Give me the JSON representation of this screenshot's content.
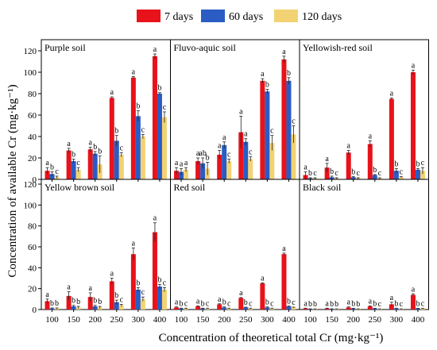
{
  "chart_data": {
    "type": "bar",
    "xlabel": "Concentration of theoretical total Cr (mg·kg⁻¹)",
    "ylabel": "Concentration of available Cr (mg·kg⁻¹)",
    "ylim": [
      0,
      120
    ],
    "yticks": [
      0,
      20,
      40,
      60,
      80,
      100,
      120
    ],
    "categories": [
      "100",
      "150",
      "200",
      "250",
      "300",
      "400"
    ],
    "legend": {
      "placement": "top",
      "entries": [
        {
          "name": "7 days",
          "color": "#e8121b"
        },
        {
          "name": "60 days",
          "color": "#2a5cc4"
        },
        {
          "name": "120 days",
          "color": "#f2d272"
        }
      ]
    },
    "panels": [
      {
        "title": "Purple soil",
        "series": [
          {
            "name": "7 days",
            "values": [
              8,
              27,
              28,
              76,
              95,
              115
            ],
            "errors": [
              3,
              2,
              2,
              1,
              1,
              2
            ],
            "letters": [
              "a",
              "a",
              "a",
              "a",
              "a",
              "a"
            ]
          },
          {
            "name": "60 days",
            "values": [
              5,
              17,
              24,
              36,
              59,
              80
            ],
            "errors": [
              2,
              2,
              2,
              5,
              5,
              1
            ],
            "letters": [
              "b",
              "b",
              "b",
              "b",
              "b",
              "b"
            ]
          },
          {
            "name": "120 days",
            "values": [
              2,
              9,
              14,
              23,
              40,
              58
            ],
            "errors": [
              1,
              2,
              8,
              2,
              2,
              5
            ],
            "letters": [
              "c",
              "c",
              "b",
              "c",
              "c",
              "c"
            ]
          }
        ]
      },
      {
        "title": "Fluvo-aquic soil",
        "series": [
          {
            "name": "7 days",
            "values": [
              8,
              17,
              23,
              44,
              92,
              112
            ],
            "errors": [
              3,
              3,
              4,
              15,
              2,
              3
            ],
            "letters": [
              "a",
              "a",
              "a",
              "a",
              "a",
              "a"
            ]
          },
          {
            "name": "60 days",
            "values": [
              7,
              15,
              32,
              35,
              82,
              92
            ],
            "errors": [
              3,
              5,
              3,
              3,
              2,
              3
            ],
            "letters": [
              "a",
              "ab",
              "a",
              "a",
              "b",
              "b"
            ]
          },
          {
            "name": "120 days",
            "values": [
              9,
              10,
              17,
              19,
              34,
              42
            ],
            "errors": [
              2,
              6,
              2,
              2,
              7,
              8
            ],
            "letters": [
              "a",
              "b",
              "c",
              "c",
              "c",
              "c"
            ]
          }
        ]
      },
      {
        "title": "Yellowish-red soil",
        "series": [
          {
            "name": "7 days",
            "values": [
              4,
              11,
              25,
              33,
              75,
              100
            ],
            "errors": [
              3,
              4,
              2,
              3,
              1,
              2
            ],
            "letters": [
              "a",
              "a",
              "a",
              "a",
              "a",
              "a"
            ]
          },
          {
            "name": "60 days",
            "values": [
              1,
              2,
              2,
              4,
              8,
              9
            ],
            "errors": [
              0.5,
              1,
              0.5,
              0.5,
              2,
              1
            ],
            "letters": [
              "b",
              "b",
              "b",
              "b",
              "b",
              "b"
            ]
          },
          {
            "name": "120 days",
            "values": [
              1,
              1,
              1,
              1,
              2,
              8
            ],
            "errors": [
              0.5,
              0.5,
              0.5,
              0.5,
              0.5,
              3
            ],
            "letters": [
              "c",
              "c",
              "c",
              "c",
              "c",
              "c"
            ]
          }
        ]
      },
      {
        "title": "Yellow brown soil",
        "series": [
          {
            "name": "7 days",
            "values": [
              8,
              13,
              12,
              27,
              53,
              74
            ],
            "errors": [
              2,
              4,
              4,
              3,
              6,
              9
            ],
            "letters": [
              "a",
              "a",
              "a",
              "a",
              "a",
              "a"
            ]
          },
          {
            "name": "60 days",
            "values": [
              1,
              3,
              3,
              7,
              19,
              22
            ],
            "errors": [
              0.5,
              1,
              1,
              2,
              2,
              2
            ],
            "letters": [
              "b",
              "b",
              "b",
              "b",
              "b",
              "b"
            ]
          },
          {
            "name": "120 days",
            "values": [
              1,
              2,
              2,
              4,
              10,
              19
            ],
            "errors": [
              0.5,
              1,
              1,
              1,
              2,
              2
            ],
            "letters": [
              "b",
              "b",
              "b",
              "c",
              "c",
              "c"
            ]
          }
        ]
      },
      {
        "title": "Red soil",
        "series": [
          {
            "name": "7 days",
            "values": [
              2,
              3,
              5,
              11,
              25,
              53
            ],
            "errors": [
              0.5,
              0.5,
              0.5,
              0.5,
              0.5,
              1
            ],
            "letters": [
              "a",
              "a",
              "a",
              "a",
              "a",
              "a"
            ]
          },
          {
            "name": "60 days",
            "values": [
              1,
              1,
              2,
              2,
              2,
              3
            ],
            "errors": [
              0.3,
              0.3,
              0.5,
              0.3,
              0.5,
              0.3
            ],
            "letters": [
              "b",
              "b",
              "b",
              "b",
              "b",
              "b"
            ]
          },
          {
            "name": "120 days",
            "values": [
              1,
              1,
              1,
              1,
              1,
              2
            ],
            "errors": [
              0.3,
              0.3,
              0.3,
              0.3,
              0.3,
              0.3
            ],
            "letters": [
              "c",
              "c",
              "c",
              "c",
              "c",
              "c"
            ]
          }
        ]
      },
      {
        "title": "Black soil",
        "series": [
          {
            "name": "7 days",
            "values": [
              1,
              1,
              2,
              3,
              5,
              14
            ],
            "errors": [
              0.3,
              0.3,
              0.5,
              0.5,
              2,
              1
            ],
            "letters": [
              "a",
              "a",
              "a",
              "a",
              "a",
              "a"
            ]
          },
          {
            "name": "60 days",
            "values": [
              0.5,
              0.5,
              1,
              1,
              1,
              1
            ],
            "errors": [
              0.2,
              0.2,
              0.2,
              0.2,
              0.3,
              0.2
            ],
            "letters": [
              "b",
              "b",
              "b",
              "b",
              "b",
              "b"
            ]
          },
          {
            "name": "120 days",
            "values": [
              0.5,
              0.5,
              0.5,
              0.5,
              0.5,
              1
            ],
            "errors": [
              0.2,
              0.2,
              0.2,
              0.2,
              0.2,
              0.2
            ],
            "letters": [
              "b",
              "b",
              "b",
              "c",
              "c",
              "c"
            ]
          }
        ]
      }
    ]
  }
}
